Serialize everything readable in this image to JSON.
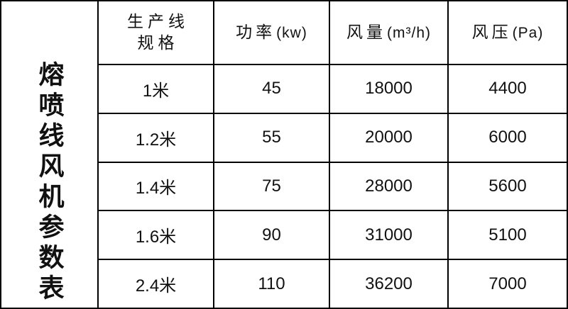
{
  "page": {
    "background_color": "#ffffff",
    "line_color": "#000000",
    "text_color": "#111111"
  },
  "title_vertical": "熔喷线风机参数表",
  "table": {
    "headers": {
      "spec_line1": "生产线",
      "spec_line2": "规格",
      "power_zh": "功率",
      "power_unit": "(kw)",
      "airflow_zh": "风量",
      "airflow_unit": "(m³/h)",
      "pressure_zh": "风压",
      "pressure_unit": "(Pa)"
    },
    "rows": [
      {
        "spec": "1米",
        "power": "45",
        "airflow": "18000",
        "pressure": "4400"
      },
      {
        "spec": "1.2米",
        "power": "55",
        "airflow": "20000",
        "pressure": "6000"
      },
      {
        "spec": "1.4米",
        "power": "75",
        "airflow": "28000",
        "pressure": "5600"
      },
      {
        "spec": "1.6米",
        "power": "90",
        "airflow": "31000",
        "pressure": "5100"
      },
      {
        "spec": "2.4米",
        "power": "110",
        "airflow": "36200",
        "pressure": "7000"
      }
    ]
  },
  "chart_data": {
    "type": "table",
    "title": "熔喷线风机参数表",
    "columns": [
      "生产线规格",
      "功率(kw)",
      "风量(m³/h)",
      "风压(Pa)"
    ],
    "rows": [
      [
        "1米",
        45,
        18000,
        4400
      ],
      [
        "1.2米",
        55,
        20000,
        6000
      ],
      [
        "1.4米",
        75,
        28000,
        5600
      ],
      [
        "1.6米",
        90,
        31000,
        5100
      ],
      [
        "2.4米",
        110,
        36200,
        7000
      ]
    ],
    "layout": {
      "title_orientation": "vertical-left",
      "grid": true,
      "header_row": true
    }
  }
}
